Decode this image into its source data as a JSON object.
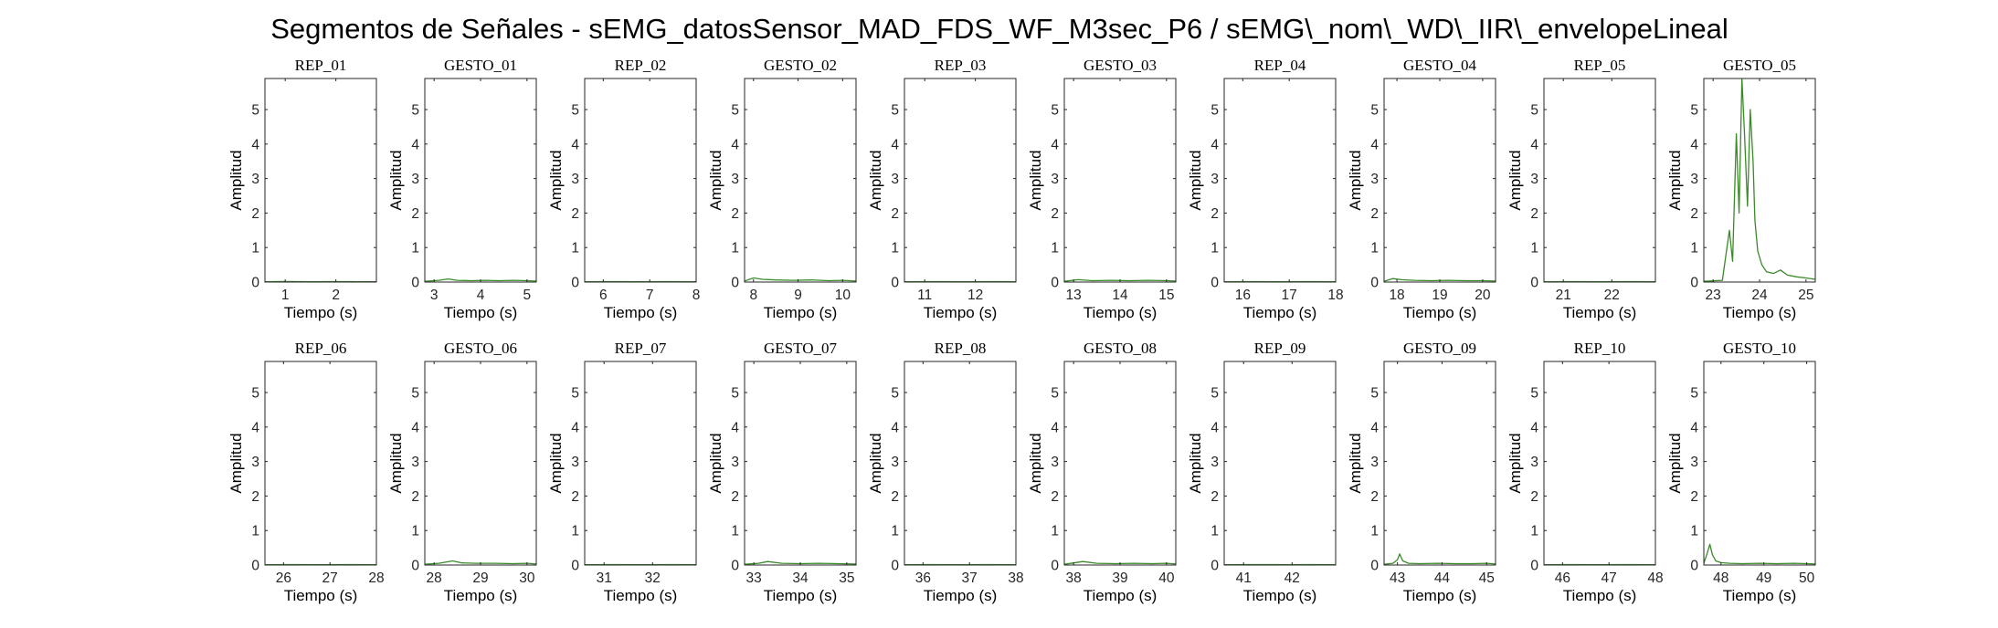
{
  "chart_data": {
    "type": "line",
    "title": "Segmentos de Señales - sEMG_datosSensor_MAD_FDS_WF_M3sec_P6 / sEMG\\_nom\\_WD\\_IIR\\_envelopeLineal",
    "line_color": "#3a8a2a",
    "grid": false,
    "panels": [
      {
        "title": "REP_01",
        "xlabel": "Tiempo (s)",
        "ylabel": "Amplitud",
        "xlim": [
          0.6,
          2.8
        ],
        "ylim": [
          0,
          5.9
        ],
        "xticks": [
          1,
          2
        ],
        "yticks": [
          0,
          1,
          2,
          3,
          4,
          5
        ],
        "x": [
          0.6,
          1.0,
          1.5,
          2.0,
          2.5,
          2.8
        ],
        "y": [
          0.01,
          0.015,
          0.01,
          0.012,
          0.01,
          0.01
        ]
      },
      {
        "title": "GESTO_01",
        "xlabel": "Tiempo (s)",
        "ylabel": "Amplitud",
        "xlim": [
          2.8,
          5.2
        ],
        "ylim": [
          0,
          5.9
        ],
        "xticks": [
          3,
          4,
          5
        ],
        "yticks": [
          0,
          1,
          2,
          3,
          4,
          5
        ],
        "x": [
          2.8,
          3.1,
          3.3,
          3.5,
          3.8,
          4.1,
          4.4,
          4.7,
          5.0,
          5.2
        ],
        "y": [
          0.02,
          0.05,
          0.09,
          0.05,
          0.04,
          0.05,
          0.04,
          0.05,
          0.04,
          0.03
        ]
      },
      {
        "title": "REP_02",
        "xlabel": "Tiempo (s)",
        "ylabel": "Amplitud",
        "xlim": [
          5.6,
          8.0
        ],
        "ylim": [
          0,
          5.9
        ],
        "xticks": [
          6,
          7,
          8
        ],
        "yticks": [
          0,
          1,
          2,
          3,
          4,
          5
        ],
        "x": [
          5.6,
          6.2,
          6.8,
          7.4,
          8.0
        ],
        "y": [
          0.01,
          0.012,
          0.01,
          0.012,
          0.01
        ]
      },
      {
        "title": "GESTO_02",
        "xlabel": "Tiempo (s)",
        "ylabel": "Amplitud",
        "xlim": [
          7.8,
          10.3
        ],
        "ylim": [
          0,
          5.9
        ],
        "xticks": [
          8,
          9,
          10
        ],
        "yticks": [
          0,
          1,
          2,
          3,
          4,
          5
        ],
        "x": [
          7.8,
          8.0,
          8.2,
          8.5,
          8.9,
          9.3,
          9.7,
          10.0,
          10.3
        ],
        "y": [
          0.03,
          0.12,
          0.08,
          0.06,
          0.05,
          0.06,
          0.04,
          0.05,
          0.03
        ]
      },
      {
        "title": "REP_03",
        "xlabel": "Tiempo (s)",
        "ylabel": "Amplitud",
        "xlim": [
          10.6,
          12.8
        ],
        "ylim": [
          0,
          5.9
        ],
        "xticks": [
          11,
          12
        ],
        "yticks": [
          0,
          1,
          2,
          3,
          4,
          5
        ],
        "x": [
          10.6,
          11.2,
          11.8,
          12.4,
          12.8
        ],
        "y": [
          0.01,
          0.012,
          0.01,
          0.012,
          0.01
        ]
      },
      {
        "title": "GESTO_03",
        "xlabel": "Tiempo (s)",
        "ylabel": "Amplitud",
        "xlim": [
          12.8,
          15.2
        ],
        "ylim": [
          0,
          5.9
        ],
        "xticks": [
          13,
          14,
          15
        ],
        "yticks": [
          0,
          1,
          2,
          3,
          4,
          5
        ],
        "x": [
          12.8,
          13.1,
          13.4,
          13.8,
          14.2,
          14.6,
          15.0,
          15.2
        ],
        "y": [
          0.02,
          0.07,
          0.04,
          0.05,
          0.04,
          0.05,
          0.04,
          0.03
        ]
      },
      {
        "title": "REP_04",
        "xlabel": "Tiempo (s)",
        "ylabel": "Amplitud",
        "xlim": [
          15.6,
          18.0
        ],
        "ylim": [
          0,
          5.9
        ],
        "xticks": [
          16,
          17,
          18
        ],
        "yticks": [
          0,
          1,
          2,
          3,
          4,
          5
        ],
        "x": [
          15.6,
          16.2,
          16.8,
          17.4,
          18.0
        ],
        "y": [
          0.01,
          0.012,
          0.01,
          0.012,
          0.01
        ]
      },
      {
        "title": "GESTO_04",
        "xlabel": "Tiempo (s)",
        "ylabel": "Amplitud",
        "xlim": [
          17.7,
          20.3
        ],
        "ylim": [
          0,
          5.9
        ],
        "xticks": [
          18,
          19,
          20
        ],
        "yticks": [
          0,
          1,
          2,
          3,
          4,
          5
        ],
        "x": [
          17.7,
          17.9,
          18.1,
          18.4,
          18.8,
          19.2,
          19.6,
          20.0,
          20.3
        ],
        "y": [
          0.02,
          0.1,
          0.07,
          0.05,
          0.04,
          0.05,
          0.04,
          0.04,
          0.03
        ]
      },
      {
        "title": "REP_05",
        "xlabel": "Tiempo (s)",
        "ylabel": "Amplitud",
        "xlim": [
          20.6,
          22.9
        ],
        "ylim": [
          0,
          5.9
        ],
        "xticks": [
          21,
          22
        ],
        "yticks": [
          0,
          1,
          2,
          3,
          4,
          5
        ],
        "x": [
          20.6,
          21.2,
          21.8,
          22.4,
          22.9
        ],
        "y": [
          0.01,
          0.012,
          0.01,
          0.012,
          0.01
        ]
      },
      {
        "title": "GESTO_05",
        "xlabel": "Tiempo (s)",
        "ylabel": "Amplitud",
        "xlim": [
          22.8,
          25.2
        ],
        "ylim": [
          0,
          5.9
        ],
        "xticks": [
          23,
          24,
          25
        ],
        "yticks": [
          0,
          1,
          2,
          3,
          4,
          5
        ],
        "x": [
          22.8,
          23.2,
          23.35,
          23.42,
          23.5,
          23.56,
          23.62,
          23.68,
          23.74,
          23.8,
          23.86,
          23.9,
          23.96,
          24.05,
          24.15,
          24.3,
          24.45,
          24.6,
          24.8,
          25.0,
          25.2
        ],
        "y": [
          0.02,
          0.05,
          1.5,
          0.6,
          4.3,
          2.0,
          5.9,
          4.2,
          2.2,
          5.0,
          3.5,
          1.8,
          0.9,
          0.5,
          0.3,
          0.25,
          0.35,
          0.2,
          0.15,
          0.12,
          0.08
        ]
      },
      {
        "title": "REP_06",
        "xlabel": "Tiempo (s)",
        "ylabel": "Amplitud",
        "xlim": [
          25.6,
          28.0
        ],
        "ylim": [
          0,
          5.9
        ],
        "xticks": [
          26,
          27,
          28
        ],
        "yticks": [
          0,
          1,
          2,
          3,
          4,
          5
        ],
        "x": [
          25.6,
          26.2,
          26.8,
          27.4,
          28.0
        ],
        "y": [
          0.01,
          0.012,
          0.01,
          0.012,
          0.01
        ]
      },
      {
        "title": "GESTO_06",
        "xlabel": "Tiempo (s)",
        "ylabel": "Amplitud",
        "xlim": [
          27.8,
          30.2
        ],
        "ylim": [
          0,
          5.9
        ],
        "xticks": [
          28,
          29,
          30
        ],
        "yticks": [
          0,
          1,
          2,
          3,
          4,
          5
        ],
        "x": [
          27.8,
          28.1,
          28.4,
          28.6,
          28.9,
          29.3,
          29.7,
          30.0,
          30.2
        ],
        "y": [
          0.02,
          0.05,
          0.12,
          0.06,
          0.05,
          0.05,
          0.04,
          0.05,
          0.03
        ]
      },
      {
        "title": "REP_07",
        "xlabel": "Tiempo (s)",
        "ylabel": "Amplitud",
        "xlim": [
          30.6,
          32.9
        ],
        "ylim": [
          0,
          5.9
        ],
        "xticks": [
          31,
          32
        ],
        "yticks": [
          0,
          1,
          2,
          3,
          4,
          5
        ],
        "x": [
          30.6,
          31.2,
          31.8,
          32.4,
          32.9
        ],
        "y": [
          0.01,
          0.012,
          0.01,
          0.012,
          0.01
        ]
      },
      {
        "title": "GESTO_07",
        "xlabel": "Tiempo (s)",
        "ylabel": "Amplitud",
        "xlim": [
          32.8,
          35.2
        ],
        "ylim": [
          0,
          5.9
        ],
        "xticks": [
          33,
          34,
          35
        ],
        "yticks": [
          0,
          1,
          2,
          3,
          4,
          5
        ],
        "x": [
          32.8,
          33.1,
          33.3,
          33.6,
          34.0,
          34.4,
          34.8,
          35.2
        ],
        "y": [
          0.02,
          0.05,
          0.1,
          0.05,
          0.04,
          0.05,
          0.04,
          0.03
        ]
      },
      {
        "title": "REP_08",
        "xlabel": "Tiempo (s)",
        "ylabel": "Amplitud",
        "xlim": [
          35.6,
          38.0
        ],
        "ylim": [
          0,
          5.9
        ],
        "xticks": [
          36,
          37,
          38
        ],
        "yticks": [
          0,
          1,
          2,
          3,
          4,
          5
        ],
        "x": [
          35.6,
          36.2,
          36.8,
          37.4,
          38.0
        ],
        "y": [
          0.01,
          0.012,
          0.01,
          0.012,
          0.01
        ]
      },
      {
        "title": "GESTO_08",
        "xlabel": "Tiempo (s)",
        "ylabel": "Amplitud",
        "xlim": [
          37.8,
          40.2
        ],
        "ylim": [
          0,
          5.9
        ],
        "xticks": [
          38,
          39,
          40
        ],
        "yticks": [
          0,
          1,
          2,
          3,
          4,
          5
        ],
        "x": [
          37.8,
          38.0,
          38.2,
          38.5,
          38.9,
          39.3,
          39.7,
          40.0,
          40.2
        ],
        "y": [
          0.02,
          0.06,
          0.1,
          0.05,
          0.04,
          0.05,
          0.04,
          0.05,
          0.03
        ]
      },
      {
        "title": "REP_09",
        "xlabel": "Tiempo (s)",
        "ylabel": "Amplitud",
        "xlim": [
          40.6,
          42.9
        ],
        "ylim": [
          0,
          5.9
        ],
        "xticks": [
          41,
          42
        ],
        "yticks": [
          0,
          1,
          2,
          3,
          4,
          5
        ],
        "x": [
          40.6,
          41.2,
          41.8,
          42.4,
          42.9
        ],
        "y": [
          0.01,
          0.012,
          0.01,
          0.012,
          0.01
        ]
      },
      {
        "title": "GESTO_09",
        "xlabel": "Tiempo (s)",
        "ylabel": "Amplitud",
        "xlim": [
          42.7,
          45.2
        ],
        "ylim": [
          0,
          5.9
        ],
        "xticks": [
          43,
          44,
          45
        ],
        "yticks": [
          0,
          1,
          2,
          3,
          4,
          5
        ],
        "x": [
          42.7,
          42.9,
          43.0,
          43.05,
          43.12,
          43.25,
          43.5,
          43.9,
          44.3,
          44.7,
          45.0,
          45.2
        ],
        "y": [
          0.02,
          0.05,
          0.15,
          0.32,
          0.12,
          0.05,
          0.04,
          0.05,
          0.04,
          0.04,
          0.05,
          0.03
        ]
      },
      {
        "title": "REP_10",
        "xlabel": "Tiempo (s)",
        "ylabel": "Amplitud",
        "xlim": [
          45.6,
          48.0
        ],
        "ylim": [
          0,
          5.9
        ],
        "xticks": [
          46,
          47,
          48
        ],
        "yticks": [
          0,
          1,
          2,
          3,
          4,
          5
        ],
        "x": [
          45.6,
          46.2,
          46.8,
          47.4,
          48.0
        ],
        "y": [
          0.01,
          0.012,
          0.01,
          0.012,
          0.01
        ]
      },
      {
        "title": "GESTO_10",
        "xlabel": "Tiempo (s)",
        "ylabel": "Amplitud",
        "xlim": [
          47.6,
          50.2
        ],
        "ylim": [
          0,
          5.9
        ],
        "xticks": [
          48,
          49,
          50
        ],
        "yticks": [
          0,
          1,
          2,
          3,
          4,
          5
        ],
        "x": [
          47.6,
          47.68,
          47.74,
          47.8,
          47.88,
          48.0,
          48.2,
          48.5,
          48.9,
          49.3,
          49.7,
          50.0,
          50.2
        ],
        "y": [
          0.05,
          0.35,
          0.6,
          0.3,
          0.12,
          0.07,
          0.05,
          0.04,
          0.05,
          0.04,
          0.05,
          0.04,
          0.03
        ]
      }
    ]
  }
}
